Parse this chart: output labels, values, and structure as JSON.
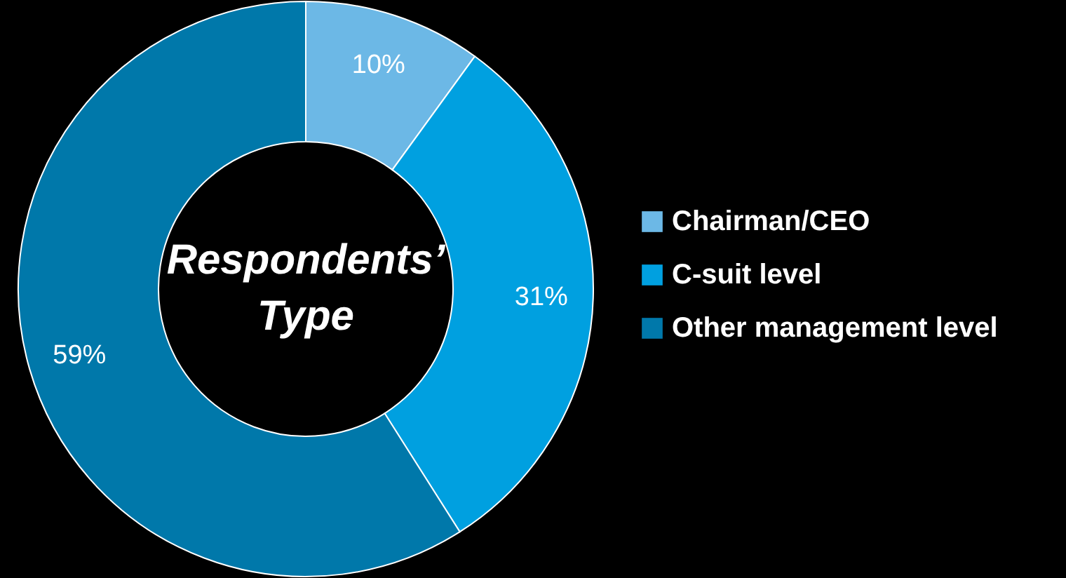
{
  "chart_data": {
    "type": "donut",
    "title": "Respondents’ Type",
    "categories": [
      "Chairman/CEO",
      "C-suit level",
      "Other management level"
    ],
    "values": [
      10,
      31,
      59
    ],
    "colors": [
      "#6cb8e6",
      "#00a0e0",
      "#0078aa"
    ],
    "value_labels": [
      "10%",
      "31%",
      "59%"
    ],
    "legend": "right"
  }
}
